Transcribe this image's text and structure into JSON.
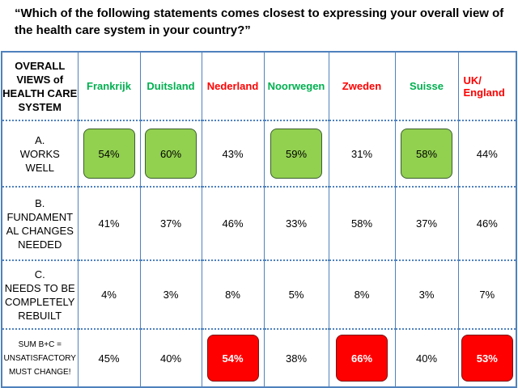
{
  "header": {
    "title": "“Which of the following statements comes closest to expressing your overall view of the health care system in your country?”"
  },
  "table": {
    "corner": "OVERALL\nVIEWS of\nHEALTH CARE\nSYSTEM",
    "columns": [
      {
        "label": "Frankrijk",
        "color": "#00b050"
      },
      {
        "label": "Duitsland",
        "color": "#00b050"
      },
      {
        "label": "Nederland",
        "color": "#ff0000"
      },
      {
        "label": "Noorwegen",
        "color": "#00b050"
      },
      {
        "label": "Zweden",
        "color": "#ff0000"
      },
      {
        "label": "Suisse",
        "color": "#00b050"
      },
      {
        "label": "UK/\nEngland",
        "color": "#ff0000"
      }
    ],
    "rows": [
      {
        "label": "A.\nWORKS\nWELL",
        "cells": [
          "54%",
          "60%",
          "43%",
          "59%",
          "31%",
          "58%",
          "44%"
        ],
        "highlight": [
          "#92d050",
          "#92d050",
          null,
          "#92d050",
          null,
          "#92d050",
          null
        ]
      },
      {
        "label": "B.\nFUNDAMENT\nAL CHANGES\nNEEDED",
        "cells": [
          "41%",
          "37%",
          "46%",
          "33%",
          "58%",
          "37%",
          "46%"
        ],
        "highlight": [
          null,
          null,
          null,
          null,
          null,
          null,
          null
        ]
      },
      {
        "label": "C.\nNEEDS TO BE\nCOMPLETELY\nREBUILT",
        "cells": [
          "4%",
          "3%",
          "8%",
          "5%",
          "8%",
          "3%",
          "7%"
        ],
        "highlight": [
          null,
          null,
          null,
          null,
          null,
          null,
          null
        ]
      },
      {
        "label": "SUM B+C =\nUNSATISFACTORY\nMUST CHANGE!",
        "cells": [
          "45%",
          "40%",
          "54%",
          "38%",
          "66%",
          "40%",
          "53%"
        ],
        "highlight": [
          null,
          null,
          "#ff0000",
          null,
          "#ff0000",
          null,
          "#ff0000"
        ]
      }
    ]
  }
}
